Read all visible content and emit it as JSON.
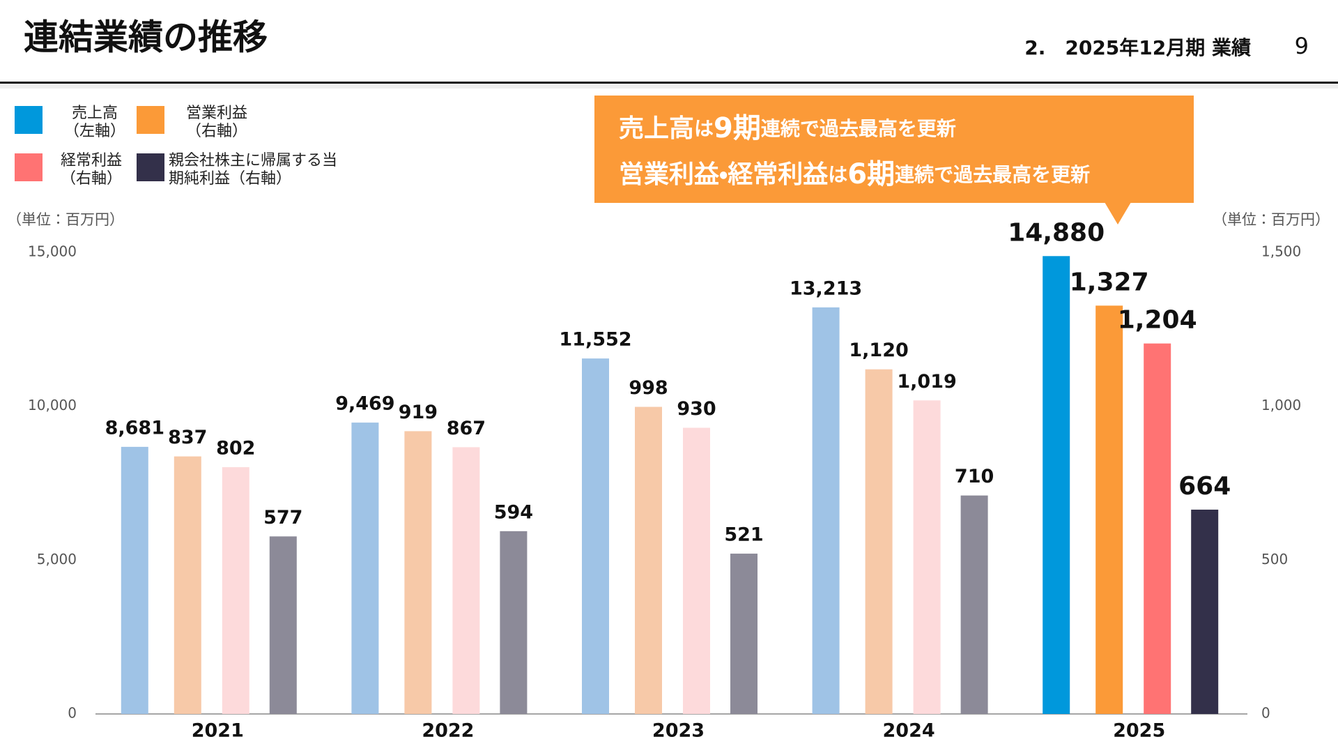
{
  "header": {
    "title": "連結業績の推移",
    "section": "2.　2025年12月期 業績",
    "page": "9"
  },
  "callout": {
    "lines": [
      [
        "売上高",
        "は",
        "9期",
        "連続で過去最高を更新"
      ],
      [
        "営業利益・経常利益",
        "は",
        "6期",
        "連続で過去最高を更新"
      ]
    ]
  },
  "chart_data": {
    "type": "bar",
    "categories": [
      "2021",
      "2022",
      "2023",
      "2024",
      "2025"
    ],
    "y_unit": "（単位：百万円）",
    "y2_unit": "（単位：百万円）",
    "ylim": [
      0,
      15000
    ],
    "yticks": [
      0,
      {
        "value": 5000,
        "label": "5,000"
      },
      {
        "value": 10000,
        "label": "10,000"
      },
      {
        "value": 15000,
        "label": "15,000"
      }
    ],
    "y2lim": [
      0,
      1500
    ],
    "y2ticks": [
      0,
      500,
      {
        "value": 1000,
        "label": "1,000"
      },
      {
        "value": 1500,
        "label": "1,500"
      }
    ],
    "series": [
      {
        "name": "売上高",
        "axis_label": "（左軸）",
        "axis": "y",
        "color": "#0098dc",
        "colors": [
          "#9fc3e6",
          "#9fc3e6",
          "#9fc3e6",
          "#9fc3e6",
          "#0098dc"
        ],
        "values": [
          8681,
          9469,
          11552,
          13213,
          14880
        ],
        "value_labels": [
          "8,681",
          "9,469",
          "11,552",
          "13,213",
          "14,880"
        ]
      },
      {
        "name": "営業利益",
        "axis_label": "（右軸）",
        "axis": "y2",
        "color": "#fb9a38",
        "colors": [
          "#f7c9a8",
          "#f7c9a8",
          "#f7c9a8",
          "#f7c9a8",
          "#fb9a38"
        ],
        "values": [
          837,
          919,
          998,
          1120,
          1327
        ],
        "value_labels": [
          null,
          null,
          null,
          "1,120",
          "1,327"
        ]
      },
      {
        "name": "経常利益",
        "axis_label": "（右軸）",
        "axis": "y2",
        "color": "#ff7373",
        "colors": [
          "#fddadb",
          "#fddadb",
          "#fddadb",
          "#fddadb",
          "#ff7373"
        ],
        "values": [
          802,
          867,
          930,
          1019,
          1204
        ],
        "value_labels": [
          null,
          null,
          null,
          "1,019",
          "1,204"
        ]
      },
      {
        "name": "親会社株主に帰属する当期純利益",
        "axis_label": "（右軸）",
        "axis": "y2",
        "color": "#33304a",
        "colors": [
          "#8c8a98",
          "#8c8a98",
          "#8c8a98",
          "#8c8a98",
          "#33304a"
        ],
        "values": [
          577,
          594,
          521,
          710,
          664
        ]
      }
    ]
  }
}
